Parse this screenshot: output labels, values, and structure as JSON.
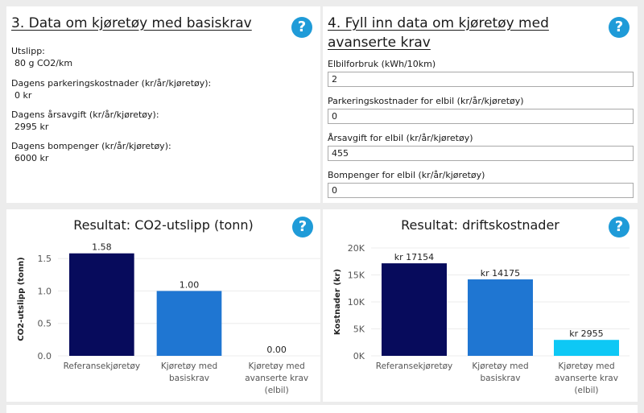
{
  "panel3": {
    "title": "3. Data om kjøretøy med basiskrav",
    "fields": [
      {
        "label": "Utslipp:",
        "value": "80 g CO2/km"
      },
      {
        "label": "Dagens parkeringskostnader (kr/år/kjøretøy):",
        "value": "0 kr"
      },
      {
        "label": "Dagens årsavgift (kr/år/kjøretøy):",
        "value": "2995 kr"
      },
      {
        "label": "Dagens bompenger (kr/år/kjøretøy):",
        "value": "6000 kr"
      }
    ]
  },
  "panel4": {
    "title_line1": "4. Fyll inn data om kjøretøy med",
    "title_line2": "avanserte krav",
    "fields": [
      {
        "label": "Elbilforbruk (kWh/10km)",
        "value": "2"
      },
      {
        "label": "Parkeringskostnader for elbil (kr/år/kjøretøy)",
        "value": "0"
      },
      {
        "label": "Årsavgift for elbil (kr/år/kjøretøy)",
        "value": "455"
      },
      {
        "label": "Bompenger for elbil (kr/år/kjøretøy)",
        "value": "0"
      }
    ]
  },
  "help_glyph": "?",
  "colors": {
    "help": "#1f9bd8",
    "bar_dark": "#070b5c",
    "bar_mid": "#1f76d2",
    "bar_light": "#0ec8f5"
  },
  "chart_data": [
    {
      "type": "bar",
      "title": "Resultat: CO2-utslipp (tonn)",
      "ylabel": "CO2-utslipp (tonn)",
      "xlabel": "",
      "categories": [
        [
          "Referansekjøretøy"
        ],
        [
          "Kjøretøy med",
          "basiskrav"
        ],
        [
          "Kjøretøy med",
          "avanserte krav",
          "(elbil)"
        ]
      ],
      "values": [
        1.58,
        1.0,
        0.0
      ],
      "value_labels": [
        "1.58",
        "1.00",
        "0.00"
      ],
      "yticks": [
        0,
        0.5,
        1.0,
        1.5
      ],
      "ytick_labels": [
        "0.0",
        "0.5",
        "1.0",
        "1.5"
      ],
      "ylim": [
        0,
        1.75
      ],
      "bar_colors": [
        "#070b5c",
        "#1f76d2",
        "#0ec8f5"
      ]
    },
    {
      "type": "bar",
      "title": "Resultat: driftskostnader",
      "ylabel": "Kostnader (kr)",
      "xlabel": "",
      "categories": [
        [
          "Referansekjøretøy"
        ],
        [
          "Kjøretøy med",
          "basiskrav"
        ],
        [
          "Kjøretøy med",
          "avanserte krav",
          "(elbil)"
        ]
      ],
      "values": [
        17154,
        14175,
        2955
      ],
      "value_labels": [
        "kr 17154",
        "kr 14175",
        "kr 2955"
      ],
      "yticks": [
        0,
        5000,
        10000,
        15000,
        20000
      ],
      "ytick_labels": [
        "0K",
        "5K",
        "10K",
        "15K",
        "20K"
      ],
      "ylim": [
        0,
        20000
      ],
      "bar_colors": [
        "#070b5c",
        "#1f76d2",
        "#0ec8f5"
      ]
    }
  ]
}
